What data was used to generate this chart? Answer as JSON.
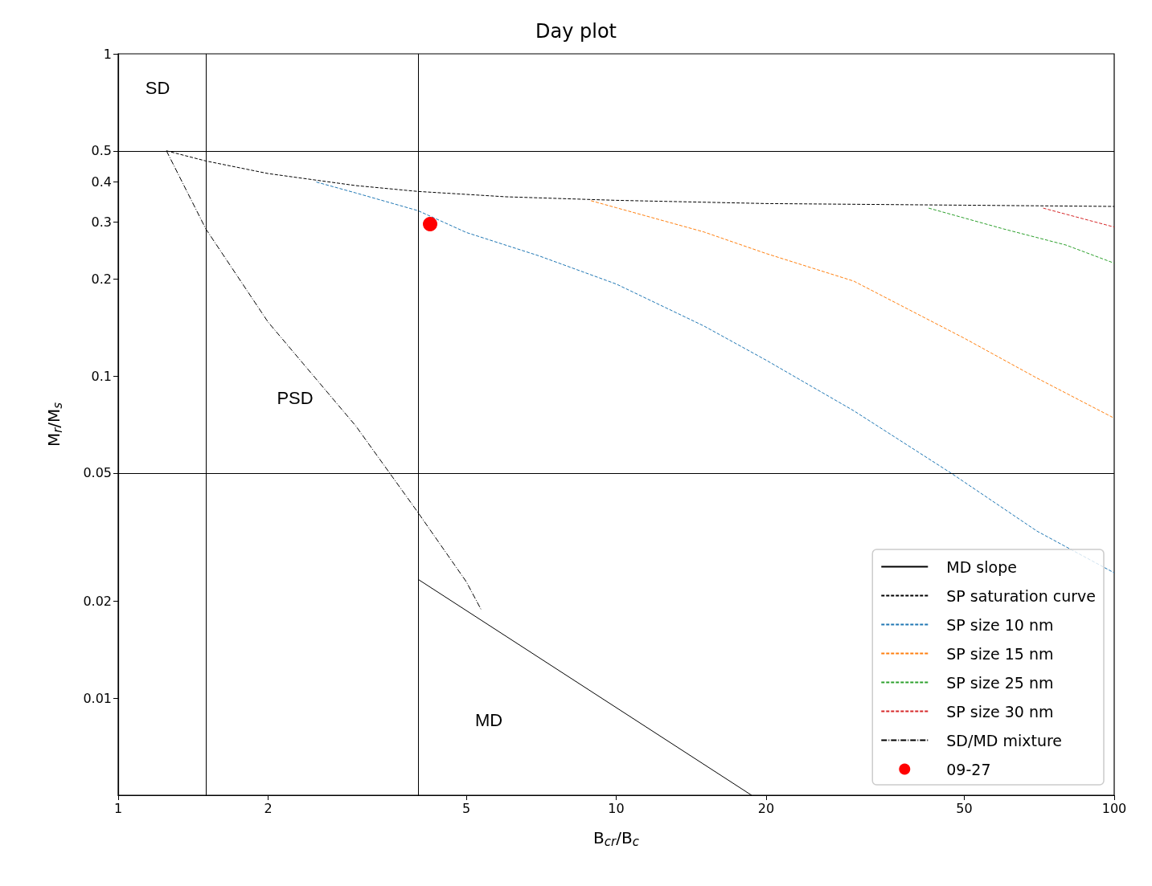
{
  "chart_data": {
    "type": "line",
    "title": "Day plot",
    "xlabel": "B$_{cr}$/B$_{c}$",
    "ylabel": "M$_{r}$/M$_{s}$",
    "log": "xy",
    "xlim": [
      1,
      100
    ],
    "ylim": [
      0.005,
      1
    ],
    "xticks": [
      1,
      2,
      5,
      10,
      20,
      50,
      100
    ],
    "yticks": [
      0.01,
      0.02,
      0.05,
      0.1,
      0.2,
      0.3,
      0.4,
      0.5,
      1
    ],
    "grid": false,
    "legend": "bottom right",
    "marker": "none",
    "ref_lines": [
      {
        "axis": "x",
        "value": 1.5,
        "color": "#000000"
      },
      {
        "axis": "x",
        "value": 4,
        "color": "#000000"
      },
      {
        "axis": "y",
        "value": 0.5,
        "color": "#000000"
      },
      {
        "axis": "y",
        "value": 0.05,
        "color": "#000000"
      }
    ],
    "annotations": [
      "SD",
      "PSD",
      "MD"
    ],
    "series": [
      {
        "name": "MD slope",
        "color": "#000000",
        "line_style": "solid",
        "x": [
          4,
          18.7
        ],
        "values": [
          0.0234,
          0.005
        ]
      },
      {
        "name": "SP saturation curve",
        "color": "#000000",
        "line_style": "dashed",
        "x": [
          1.25,
          1.5,
          2,
          3,
          4,
          6,
          10,
          20,
          50,
          100
        ],
        "values": [
          0.5,
          0.465,
          0.425,
          0.39,
          0.374,
          0.36,
          0.351,
          0.343,
          0.339,
          0.336
        ]
      },
      {
        "name": "SP size 10 nm",
        "color": "#1f77b4",
        "line_style": "dashed",
        "x": [
          2.5,
          3,
          4,
          5,
          7,
          10,
          15,
          20,
          30,
          47,
          70,
          100
        ],
        "values": [
          0.4,
          0.37,
          0.326,
          0.279,
          0.236,
          0.193,
          0.143,
          0.112,
          0.078,
          0.05,
          0.033,
          0.0245
        ]
      },
      {
        "name": "SP size 15 nm",
        "color": "#ff7f0e",
        "line_style": "dashed",
        "x": [
          8.9,
          10,
          15,
          20,
          30,
          50,
          70,
          100
        ],
        "values": [
          0.35,
          0.333,
          0.28,
          0.24,
          0.197,
          0.131,
          0.0985,
          0.074
        ]
      },
      {
        "name": "SP size 25 nm",
        "color": "#2ca02c",
        "line_style": "dashed",
        "x": [
          42.4,
          60,
          80,
          100
        ],
        "values": [
          0.332,
          0.286,
          0.255,
          0.224
        ]
      },
      {
        "name": "SP size 30 nm",
        "color": "#d62728",
        "line_style": "dashed",
        "x": [
          72,
          85,
          100
        ],
        "values": [
          0.332,
          0.31,
          0.29
        ]
      },
      {
        "name": "SD/MD mixture",
        "color": "#000000",
        "line_style": "dashdot",
        "x": [
          1.25,
          1.5,
          2,
          3,
          4,
          5,
          5.35
        ],
        "values": [
          0.5,
          0.286,
          0.147,
          0.07,
          0.0377,
          0.023,
          0.0189
        ]
      },
      {
        "name": "09-27",
        "type": "scatter",
        "marker": "circle",
        "color": "#ff0000",
        "x": [
          4.23
        ],
        "values": [
          0.296
        ]
      }
    ]
  }
}
